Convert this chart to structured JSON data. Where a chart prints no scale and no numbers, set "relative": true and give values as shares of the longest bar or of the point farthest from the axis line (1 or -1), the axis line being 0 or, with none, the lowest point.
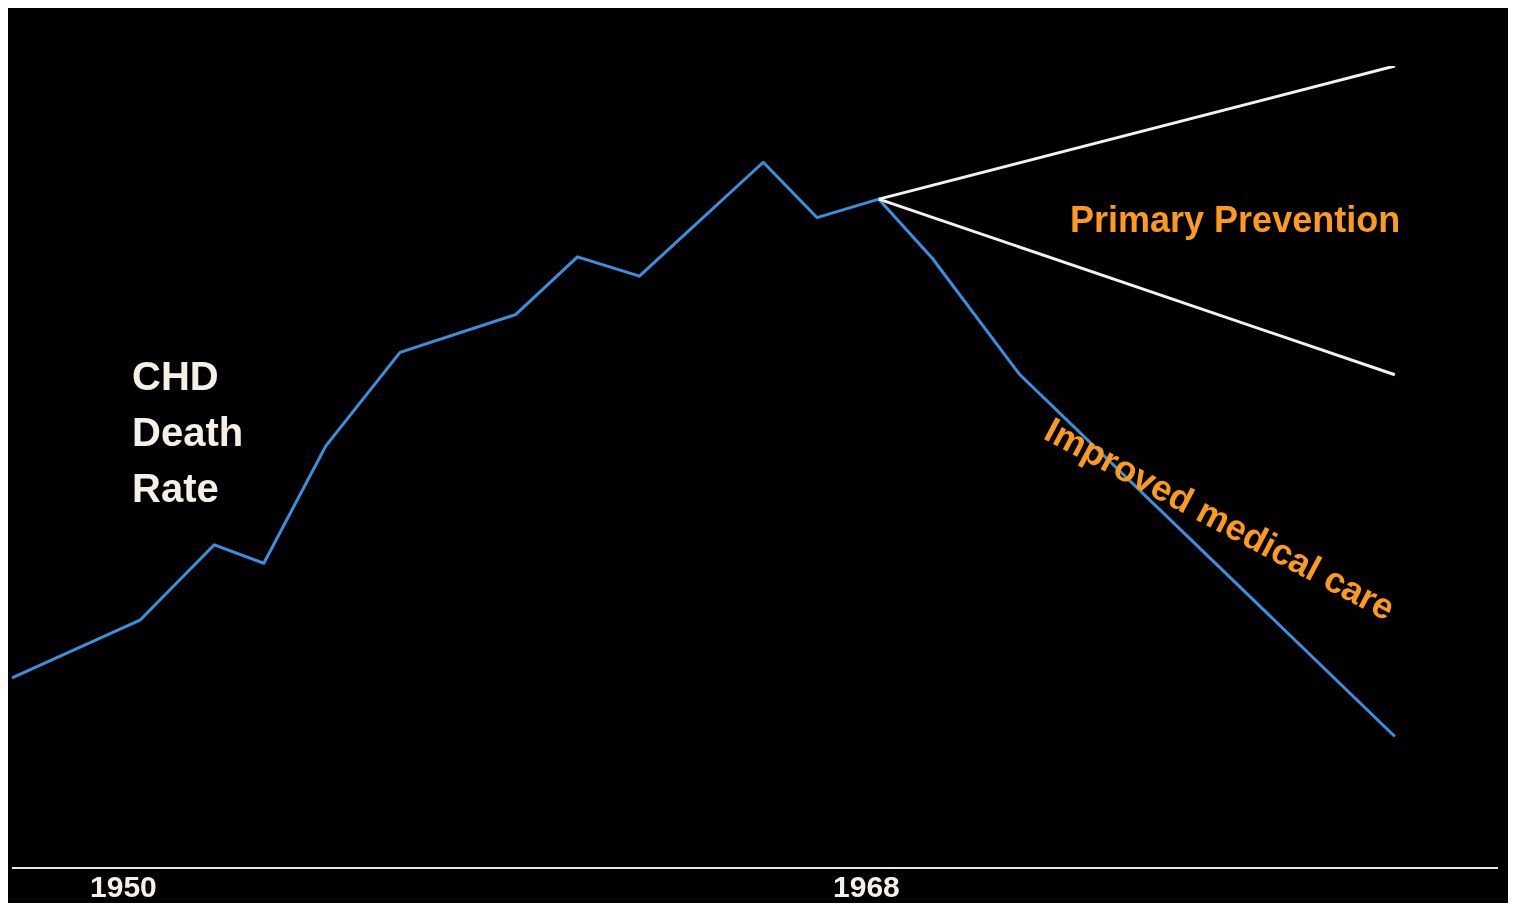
{
  "chart_data": {
    "type": "line",
    "relative": true,
    "annotations": [
      "CHD Death Rate",
      "Primary Prevention",
      "Improved medical care"
    ],
    "xlim": [
      1947.3,
      1983.3
    ],
    "xticks": [
      1950,
      1968
    ],
    "series": [
      {
        "color": "#3a8fe0",
        "x": [
          1947.3,
          1950.4,
          1952.2,
          1953.4,
          1954.9,
          1956.7,
          1959.5,
          1961.0,
          1962.5,
          1965.5,
          1966.8,
          1968.3,
          1969.6,
          1971.7,
          1980.8
        ],
        "values": [
          0.237,
          0.309,
          0.403,
          0.38,
          0.526,
          0.643,
          0.69,
          0.762,
          0.738,
          0.88,
          0.811,
          0.834,
          0.76,
          0.616,
          0.164
        ]
      },
      {
        "color": "#f2f2f2",
        "x": [
          1968.3,
          1980.8
        ],
        "values": [
          0.834,
          1
        ]
      },
      {
        "color": "#f2f2f2",
        "x": [
          1968.3,
          1980.8
        ],
        "values": [
          0.834,
          0.615
        ]
      }
    ],
    "grid": false,
    "legend": false,
    "marker": "none",
    "line_style": "solid"
  }
}
